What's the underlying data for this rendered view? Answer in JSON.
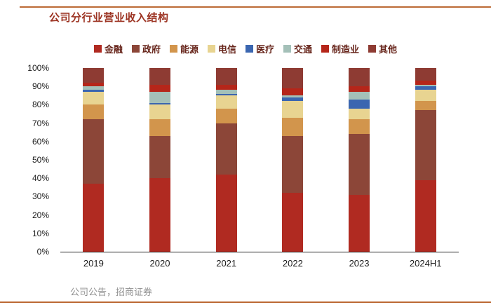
{
  "title": "公司分行业营业收入结构",
  "source": "公司公告，招商证券",
  "accent": {
    "rule_color": "#bc6a35",
    "title_color": "#9c3322"
  },
  "chart_data": {
    "type": "bar",
    "stacked": true,
    "percent": true,
    "title": "公司分行业营业收入结构",
    "xlabel": "",
    "ylabel": "",
    "ylim": [
      0,
      100
    ],
    "grid": false,
    "legend_position": "top",
    "categories": [
      "2019",
      "2020",
      "2021",
      "2022",
      "2023",
      "2024H1"
    ],
    "y_ticks": [
      "0%",
      "10%",
      "20%",
      "30%",
      "40%",
      "50%",
      "60%",
      "70%",
      "80%",
      "90%",
      "100%"
    ],
    "series": [
      {
        "key": "finance",
        "name": "金融",
        "color": "#b02a21",
        "values": [
          37,
          40,
          42,
          32,
          31,
          39
        ]
      },
      {
        "key": "government",
        "name": "政府",
        "color": "#8c4638",
        "values": [
          35,
          23,
          28,
          31,
          33,
          38
        ]
      },
      {
        "key": "energy",
        "name": "能源",
        "color": "#d2954c",
        "values": [
          8,
          9,
          8,
          10,
          8,
          5
        ]
      },
      {
        "key": "telecom",
        "name": "电信",
        "color": "#e8d491",
        "values": [
          7,
          8,
          7,
          9,
          6,
          6
        ]
      },
      {
        "key": "healthcare",
        "name": "医疗",
        "color": "#3b66b0",
        "values": [
          1,
          1,
          1,
          2,
          5,
          2
        ]
      },
      {
        "key": "transport",
        "name": "交通",
        "color": "#a4c0b8",
        "values": [
          2,
          6,
          2,
          1,
          4,
          1
        ]
      },
      {
        "key": "manufacturing",
        "name": "制造业",
        "color": "#b5261a",
        "values": [
          2,
          4,
          3,
          4,
          3,
          2
        ]
      },
      {
        "key": "other",
        "name": "其他",
        "color": "#8e3b33",
        "values": [
          8,
          9,
          9,
          11,
          10,
          7
        ]
      }
    ]
  }
}
